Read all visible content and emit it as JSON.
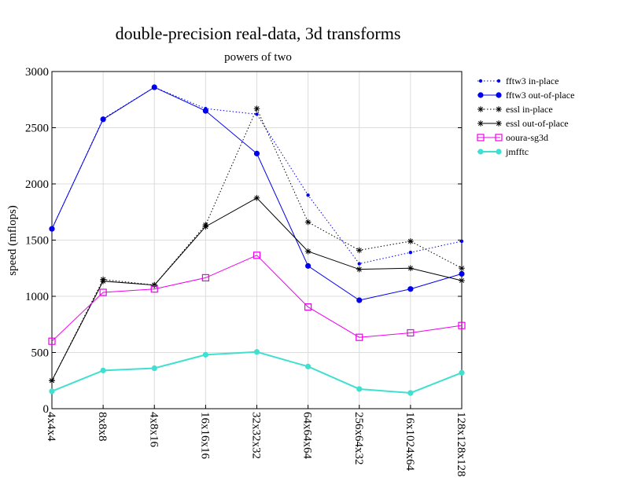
{
  "chart_data": {
    "type": "line",
    "title": "double-precision real-data, 3d transforms",
    "subtitle": "powers of two",
    "xlabel": "",
    "ylabel": "speed (mflops)",
    "ylim": [
      0,
      3000
    ],
    "yticks": [
      0,
      500,
      1000,
      1500,
      2000,
      2500,
      3000
    ],
    "grid": true,
    "legend_position": "right",
    "categories": [
      "4x4x4",
      "8x8x8",
      "4x8x16",
      "16x16x16",
      "32x32x32",
      "64x64x64",
      "256x64x32",
      "16x1024x64",
      "128x128x128"
    ],
    "series": [
      {
        "name": "fftw3 in-place",
        "color": "#0000ee",
        "style": "dotted",
        "marker": "small-dot",
        "values": [
          1600,
          2580,
          2860,
          2670,
          2620,
          1900,
          1290,
          1390,
          1490
        ]
      },
      {
        "name": "fftw3 out-of-place",
        "color": "#0000ee",
        "style": "solid",
        "marker": "dot",
        "values": [
          1600,
          2575,
          2860,
          2650,
          2270,
          1270,
          965,
          1065,
          1200
        ]
      },
      {
        "name": "essl in-place",
        "color": "#000000",
        "style": "dotted",
        "marker": "star",
        "values": [
          250,
          1150,
          1100,
          1635,
          2670,
          1660,
          1410,
          1490,
          1250
        ]
      },
      {
        "name": "essl out-of-place",
        "color": "#000000",
        "style": "solid",
        "marker": "star",
        "values": [
          250,
          1135,
          1100,
          1620,
          1875,
          1400,
          1240,
          1250,
          1140
        ]
      },
      {
        "name": "ooura-sg3d",
        "color": "#ee00ee",
        "style": "solid",
        "marker": "square",
        "values": [
          600,
          1035,
          1065,
          1165,
          1365,
          905,
          635,
          675,
          740
        ]
      },
      {
        "name": "jmfftc",
        "color": "#40e0d0",
        "style": "solid",
        "marker": "dot",
        "values": [
          155,
          340,
          360,
          480,
          505,
          375,
          175,
          140,
          320
        ]
      }
    ]
  }
}
